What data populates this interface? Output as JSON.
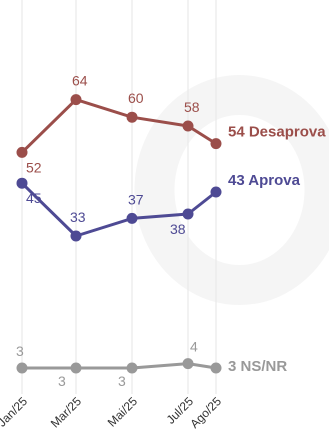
{
  "chart_data": {
    "type": "line",
    "title": "",
    "xlabel": "",
    "ylabel": "",
    "categories": [
      "Jan/25",
      "Mar/25",
      "Mai/25",
      "Jul/25",
      "Ago/25"
    ],
    "ylim": [
      0,
      70
    ],
    "grid": "vertical lines at each category",
    "legend": "none (series labeled at line ends)",
    "series": [
      {
        "key": "desaprova",
        "color": "#9b4e4a",
        "values": [
          52,
          64,
          60,
          58,
          54
        ],
        "point_labels": [
          "52",
          "64",
          "60",
          "58",
          ""
        ],
        "end_label": "54 Desaprova"
      },
      {
        "key": "aprova",
        "color": "#4e4a94",
        "values": [
          45,
          33,
          37,
          38,
          43
        ],
        "point_labels": [
          "45",
          "33",
          "37",
          "38",
          ""
        ],
        "end_label": "43 Aprova"
      },
      {
        "key": "nsnr",
        "color": "#999999",
        "values": [
          3,
          3,
          3,
          4,
          3
        ],
        "point_labels": [
          "3",
          "3",
          "3",
          "4",
          ""
        ],
        "end_label": "3 NS/NR"
      }
    ]
  }
}
